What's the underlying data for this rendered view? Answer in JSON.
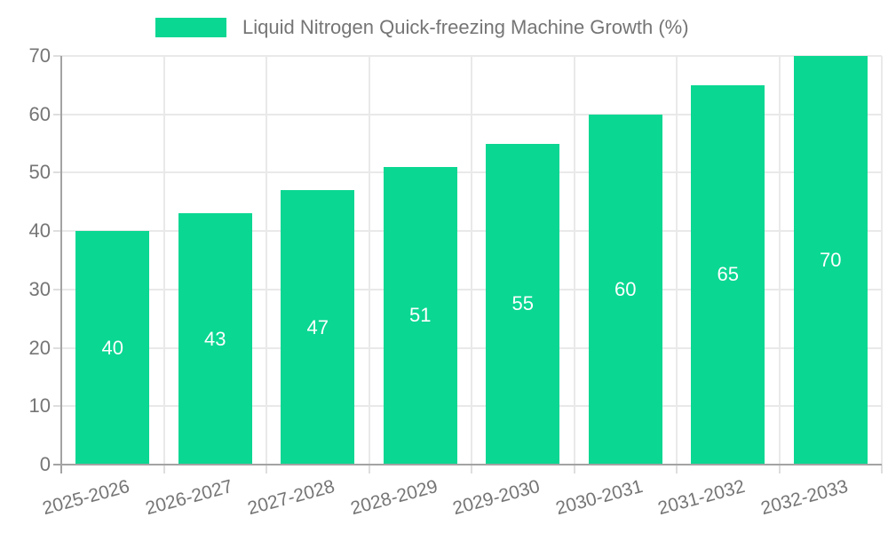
{
  "legend": {
    "label": "Liquid Nitrogen Quick-freezing Machine Growth (%)"
  },
  "chart_data": {
    "type": "bar",
    "title": "Liquid Nitrogen Quick-freezing Machine Growth (%)",
    "categories": [
      "2025-2026",
      "2026-2027",
      "2027-2028",
      "2028-2029",
      "2029-2030",
      "2030-2031",
      "2031-2032",
      "2032-2033"
    ],
    "values": [
      40,
      43,
      47,
      51,
      55,
      60,
      65,
      70
    ],
    "series_name": "Liquid Nitrogen Quick-freezing Machine Growth (%)",
    "xlabel": "",
    "ylabel": "",
    "ylim": [
      0,
      70
    ],
    "yticks": [
      0,
      10,
      20,
      30,
      40,
      50,
      60,
      70
    ],
    "grid": true,
    "legend_position": "top-center",
    "x_label_rotation_deg": -15,
    "value_labels": "inside-center"
  },
  "colors": {
    "bar": "#0ad792",
    "value_label": "#ffffff",
    "axis_line": "#a3a3a3",
    "grid_line": "#e9e9e9",
    "tick_line": "#dedede",
    "text": "#757575",
    "background": "#ffffff"
  }
}
